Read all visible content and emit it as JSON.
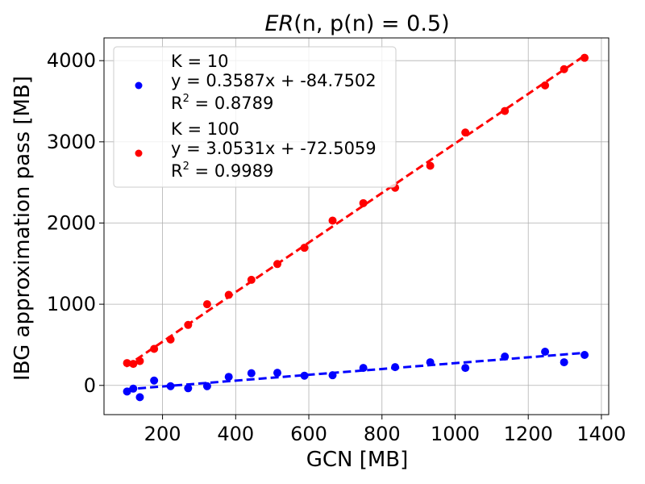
{
  "chart_data": {
    "type": "scatter",
    "title_prefix": "ER",
    "title_suffix": "(n, p(n) = 0.5)",
    "xlabel": "GCN [MB]",
    "ylabel": "IBG approximation pass [MB]",
    "xlim": [
      40,
      1420
    ],
    "ylim": [
      -360,
      4280
    ],
    "xticks": [
      200,
      400,
      600,
      800,
      1000,
      1200,
      1400
    ],
    "yticks": [
      0,
      1000,
      2000,
      3000,
      4000
    ],
    "grid": true,
    "legend_position": "upper-left",
    "series": [
      {
        "name": "K = 10",
        "color": "#0000ff",
        "equation": "y = 0.3587x + -84.7502",
        "r2_prefix": "R",
        "r2_sup": "2",
        "r2_value": " = 0.8789",
        "fit": {
          "slope": 0.3587,
          "intercept": -84.7502,
          "x_range": [
            100,
            1355
          ]
        },
        "points": [
          [
            103,
            -75
          ],
          [
            120,
            -40
          ],
          [
            138,
            -145
          ],
          [
            177,
            60
          ],
          [
            222,
            -10
          ],
          [
            270,
            -35
          ],
          [
            322,
            -10
          ],
          [
            381,
            105
          ],
          [
            443,
            150
          ],
          [
            514,
            155
          ],
          [
            588,
            120
          ],
          [
            665,
            125
          ],
          [
            749,
            215
          ],
          [
            836,
            225
          ],
          [
            932,
            285
          ],
          [
            1028,
            215
          ],
          [
            1136,
            355
          ],
          [
            1246,
            415
          ],
          [
            1298,
            285
          ],
          [
            1354,
            375
          ]
        ]
      },
      {
        "name": "K = 100",
        "color": "#ff0000",
        "equation": "y = 3.0531x + -72.5059",
        "r2_prefix": "R",
        "r2_sup": "2",
        "r2_value": " = 0.9989",
        "fit": {
          "slope": 3.0531,
          "intercept": -72.5059,
          "x_range": [
            100,
            1355
          ]
        },
        "points": [
          [
            103,
            275
          ],
          [
            120,
            265
          ],
          [
            138,
            300
          ],
          [
            177,
            450
          ],
          [
            222,
            565
          ],
          [
            270,
            745
          ],
          [
            322,
            1000
          ],
          [
            381,
            1115
          ],
          [
            443,
            1300
          ],
          [
            514,
            1495
          ],
          [
            588,
            1695
          ],
          [
            665,
            2030
          ],
          [
            749,
            2245
          ],
          [
            836,
            2435
          ],
          [
            932,
            2705
          ],
          [
            1028,
            3115
          ],
          [
            1136,
            3380
          ],
          [
            1246,
            3695
          ],
          [
            1298,
            3895
          ],
          [
            1354,
            4035
          ]
        ]
      }
    ]
  }
}
